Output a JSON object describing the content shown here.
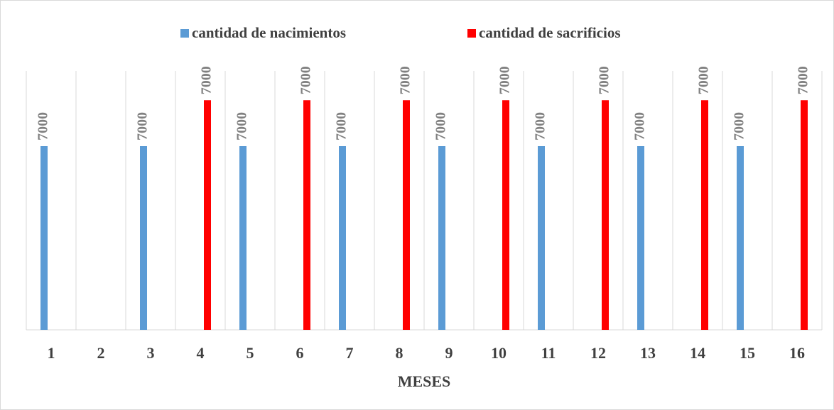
{
  "chart_data": {
    "type": "bar",
    "x_label": "MESES",
    "categories": [
      "1",
      "2",
      "3",
      "4",
      "5",
      "6",
      "7",
      "8",
      "9",
      "10",
      "11",
      "12",
      "13",
      "14",
      "15",
      "16"
    ],
    "series": [
      {
        "name": "cantidad de nacimientos",
        "color": "#5b9bd5",
        "values": [
          7000,
          null,
          7000,
          null,
          7000,
          null,
          7000,
          null,
          7000,
          null,
          7000,
          null,
          7000,
          null,
          7000,
          null
        ]
      },
      {
        "name": "cantidad de sacrificios",
        "color": "#ff0000",
        "axis": "y2",
        "values": [
          null,
          null,
          null,
          7000,
          null,
          7000,
          null,
          7000,
          null,
          7000,
          null,
          7000,
          null,
          7000,
          null,
          7000
        ]
      }
    ],
    "ylim": [
      0,
      10000
    ],
    "y2lim": [
      0,
      8000
    ],
    "legend": "top",
    "data_labels": true,
    "grid": "vertical"
  }
}
